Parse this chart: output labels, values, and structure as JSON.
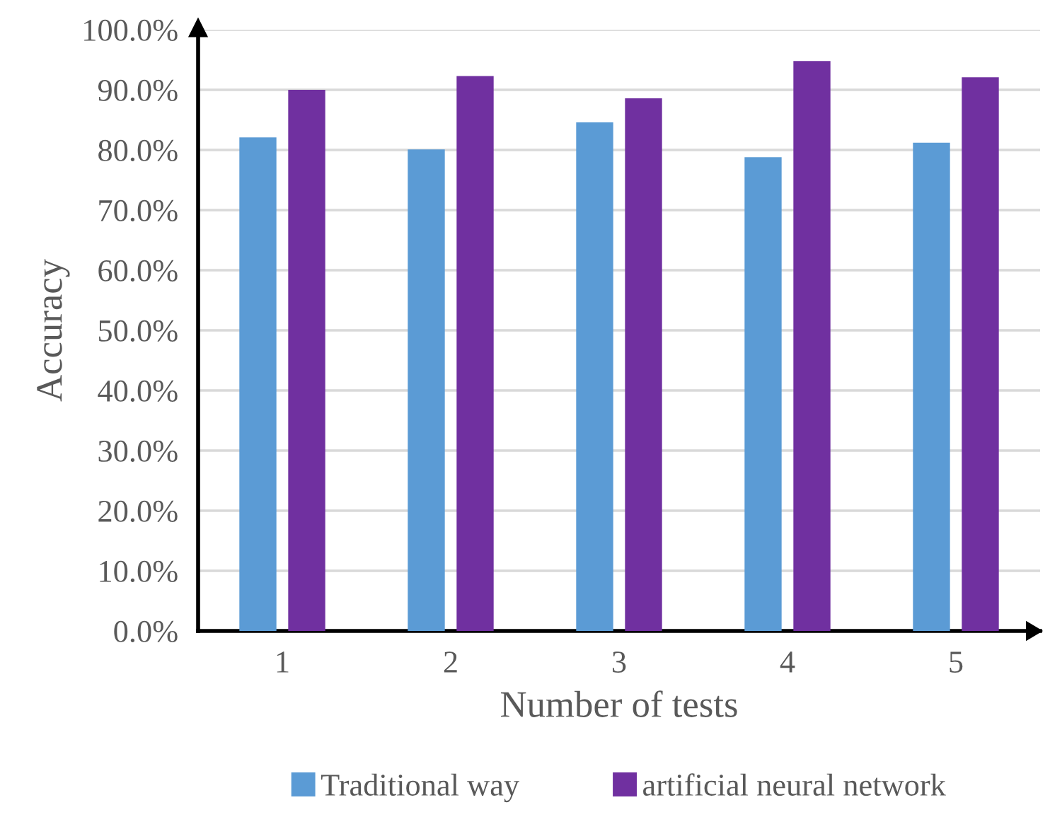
{
  "chart_data": {
    "type": "bar",
    "xlabel": "Number of tests",
    "ylabel": "Accuracy",
    "categories": [
      "1",
      "2",
      "3",
      "4",
      "5"
    ],
    "series": [
      {
        "name": "Traditional way",
        "color": "#5b9bd5",
        "values": [
          82.1,
          80.1,
          84.6,
          78.8,
          81.2
        ]
      },
      {
        "name": "artificial neural network",
        "color": "#7030a0",
        "values": [
          90.0,
          92.3,
          88.6,
          94.8,
          92.1
        ]
      }
    ],
    "ylim": [
      0,
      100
    ],
    "yticks": [
      {
        "value": 0,
        "label": "0.0%"
      },
      {
        "value": 10,
        "label": "10.0%"
      },
      {
        "value": 20,
        "label": "20.0%"
      },
      {
        "value": 30,
        "label": "30.0%"
      },
      {
        "value": 40,
        "label": "40.0%"
      },
      {
        "value": 50,
        "label": "50.0%"
      },
      {
        "value": 60,
        "label": "60.0%"
      },
      {
        "value": 70,
        "label": "70.0%"
      },
      {
        "value": 80,
        "label": "80.0%"
      },
      {
        "value": 90,
        "label": "90.0%"
      },
      {
        "value": 100,
        "label": "100.0%"
      }
    ],
    "grid": "y",
    "legend": "bottom"
  }
}
